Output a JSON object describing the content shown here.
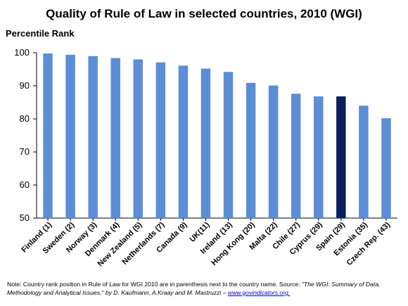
{
  "chart_data": {
    "type": "bar",
    "title": "Quality of Rule of Law in selected countries, 2010 (WGI)",
    "ylabel": "Percentile Rank",
    "xlabel": "",
    "ylim": [
      50,
      100
    ],
    "yticks": [
      50,
      60,
      70,
      80,
      90,
      100
    ],
    "grid": false,
    "categories": [
      "Finland (1)",
      "Sweden (2)",
      "Norway (3)",
      "Denmark (4)",
      "New Zealand (5)",
      "Netherlands (7)",
      "Canada (9)",
      "UK(11)",
      "Ireland (13)",
      "Hong Kong (20)",
      "Malta (22)",
      "Chile (27)",
      "Cyprus (29)",
      "Spain (29)",
      "Estonia (35)",
      "Czech Rep. (43)"
    ],
    "values": [
      99.8,
      99.4,
      99.0,
      98.4,
      98.0,
      97.1,
      96.1,
      95.2,
      94.2,
      90.9,
      90.1,
      87.6,
      86.8,
      86.8,
      84.0,
      80.2
    ],
    "colors": [
      "#5b8ed6",
      "#5b8ed6",
      "#5b8ed6",
      "#5b8ed6",
      "#5b8ed6",
      "#5b8ed6",
      "#5b8ed6",
      "#5b8ed6",
      "#5b8ed6",
      "#5b8ed6",
      "#5b8ed6",
      "#5b8ed6",
      "#5b8ed6",
      "#0a1f5c",
      "#5b8ed6",
      "#5b8ed6"
    ]
  },
  "note": {
    "text": "Note: Country rank position in Rule of Law for WGI 2010 are in parenthesis next to the country name. Source: ",
    "source": "\"The WGI: Summary of Data, Methodology and Analytical Issues,\"",
    "authors": " by D. Kaufmann, A.Kraay and M. Mastruzzi – ",
    "link": "www.govindicators.org."
  }
}
